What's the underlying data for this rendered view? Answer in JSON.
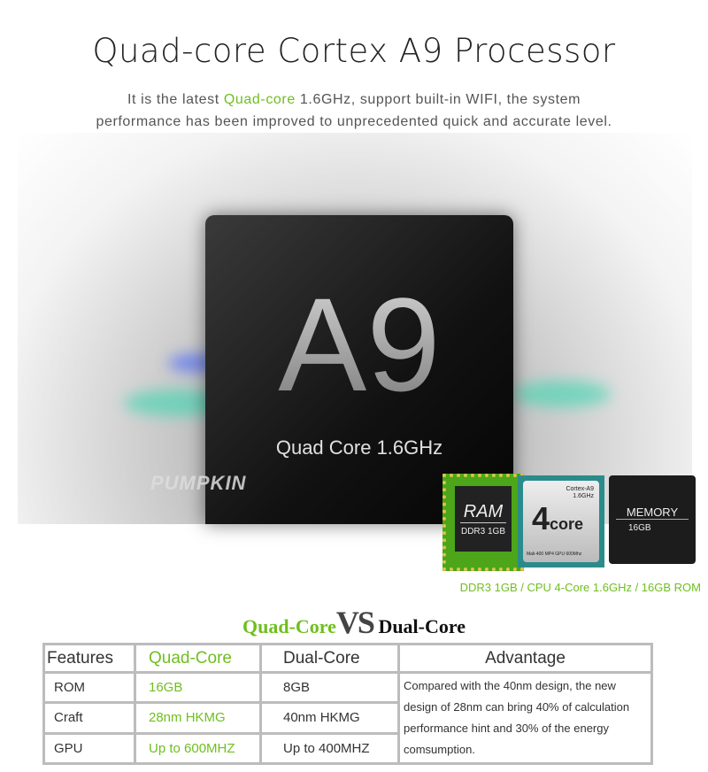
{
  "title": "Quad-core Cortex A9 Processor",
  "subtitle": {
    "before": "It is the latest ",
    "highlight": "Quad-core",
    "after": " 1.6GHz, support built-in WIFI, the system",
    "line2": "performance has been improved to unprecedented quick and accurate level."
  },
  "chip": {
    "model": "A9",
    "caption": "Quad Core 1.6GHz"
  },
  "logo": "PUMPKIN",
  "ram": {
    "label": "RAM",
    "spec": "DDR3 1GB"
  },
  "cpu": {
    "brand": "Cortex-A9",
    "freq": "1.6GHz",
    "big": "4",
    "core": "core",
    "gpu": "Mali-400 MP4 GPU 600Mhz"
  },
  "memory": {
    "label": "MEMORY",
    "spec": "16GB"
  },
  "spec_line": "DDR3 1GB / CPU 4-Core 1.6GHz / 16GB ROM",
  "vs": {
    "left": "Quad-Core",
    "mid": "VS",
    "right": "Dual-Core"
  },
  "table": {
    "headers": [
      "Features",
      "Quad-Core",
      "Dual-Core",
      "Advantage"
    ],
    "rows": [
      [
        "ROM",
        "16GB",
        "8GB"
      ],
      [
        "Craft",
        "28nm HKMG",
        "40nm HKMG"
      ],
      [
        "GPU",
        "Up to 600MHZ",
        "Up to 400MHZ"
      ]
    ],
    "advantage": "Compared with the 40nm design,  the new design of 28nm can bring 40% of calculation performance hint and 30% of the energy  comsumption."
  },
  "colors": {
    "accent": "#6fbf1f"
  }
}
